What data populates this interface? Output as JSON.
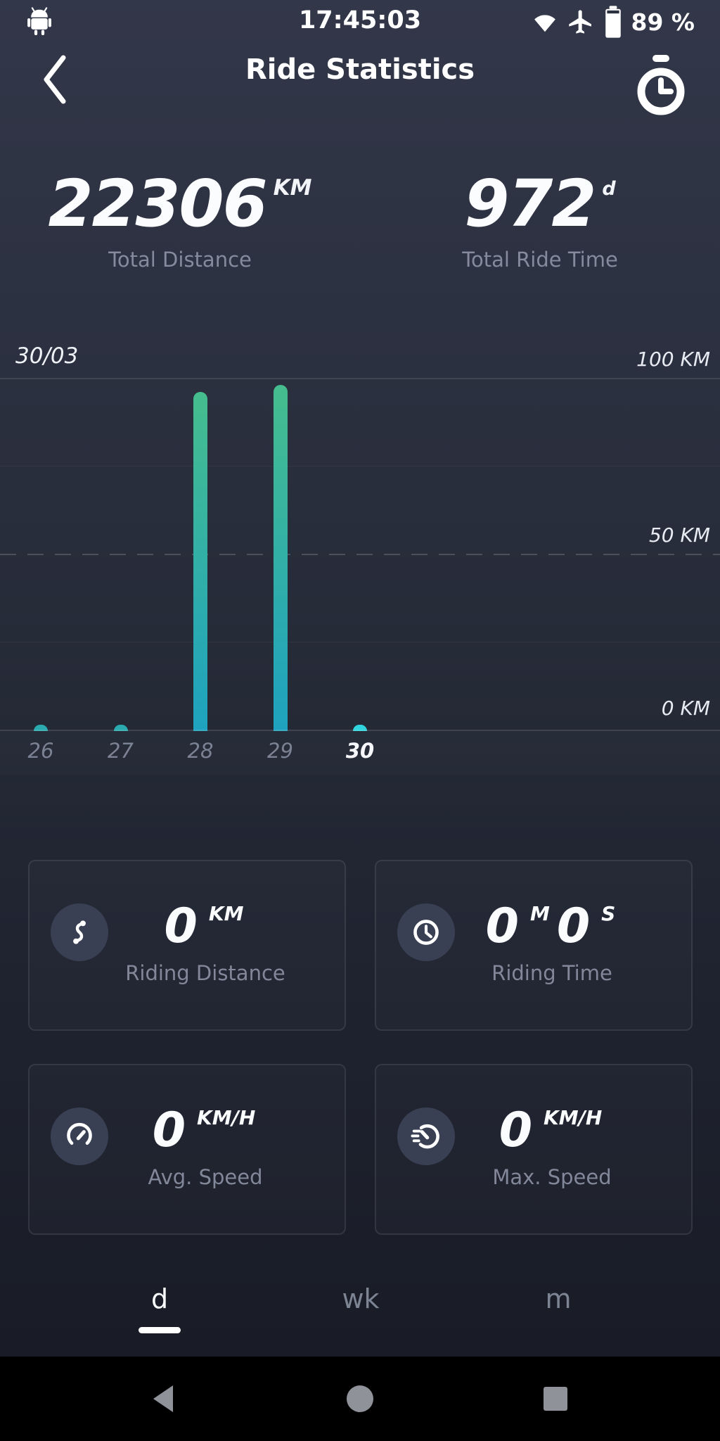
{
  "status_bar": {
    "time": "17:45:03",
    "battery_text": "89 %",
    "icons": [
      "android-icon",
      "wifi-icon",
      "airplane-icon",
      "battery-icon"
    ]
  },
  "header": {
    "title": "Ride Statistics",
    "left_icon": "back-icon",
    "right_icon": "stopwatch-icon"
  },
  "summary": {
    "left": {
      "value": "22306",
      "unit": "KM",
      "label": "Total Distance"
    },
    "right": {
      "value": "972",
      "unit": "d",
      "label": "Total Ride Time"
    }
  },
  "chart_data": {
    "type": "bar",
    "date_label": "30/03",
    "categories": [
      "26",
      "27",
      "28",
      "29",
      "30"
    ],
    "values": [
      1.8,
      1.8,
      96.5,
      98.5,
      1.8
    ],
    "selected_index": 4,
    "ylim": [
      0,
      100
    ],
    "y_tick_labels": [
      "100 KM",
      "50 KM",
      "0 KM"
    ],
    "grid": "horizontal, dashed line at 50 KM",
    "legend": "none",
    "colors": {
      "bar_top": "#46bd8e",
      "bar_bottom": "#1ea2bf",
      "stub": "#2aa9ae",
      "stub_selected": "#2fd4df"
    }
  },
  "cards": [
    {
      "icon": "route-icon",
      "label": "Riding Distance",
      "parts": [
        {
          "value": "0",
          "unit": "KM"
        }
      ]
    },
    {
      "icon": "clock-icon",
      "label": "Riding Time",
      "parts": [
        {
          "value": "0",
          "unit": "M"
        },
        {
          "value": "0",
          "unit": "S"
        }
      ]
    },
    {
      "icon": "speedometer-icon",
      "label": "Avg. Speed",
      "parts": [
        {
          "value": "0",
          "unit": "KM/H"
        }
      ]
    },
    {
      "icon": "max-speed-icon",
      "label": "Max. Speed",
      "parts": [
        {
          "value": "0",
          "unit": "KM/H"
        }
      ]
    }
  ],
  "tabs": [
    {
      "label": "d",
      "selected": true
    },
    {
      "label": "wk",
      "selected": false
    },
    {
      "label": "m",
      "selected": false
    }
  ],
  "nav_bar": {
    "icons": [
      "back-triangle-icon",
      "home-circle-icon",
      "recents-square-icon"
    ]
  }
}
